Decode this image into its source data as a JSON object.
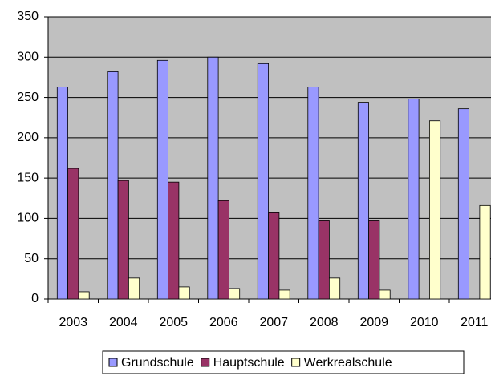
{
  "chart_data": {
    "type": "bar",
    "categories": [
      "2003",
      "2004",
      "2005",
      "2006",
      "2007",
      "2008",
      "2009",
      "2010",
      "2011"
    ],
    "series": [
      {
        "name": "Grundschule",
        "color": "#9999ff",
        "values": [
          263,
          282,
          296,
          300,
          292,
          263,
          244,
          248,
          236
        ]
      },
      {
        "name": "Hauptschule",
        "color": "#993366",
        "values": [
          162,
          147,
          145,
          122,
          107,
          97,
          97,
          null,
          null
        ]
      },
      {
        "name": "Werkrealschule",
        "color": "#ffffcc",
        "values": [
          9,
          26,
          15,
          13,
          11,
          26,
          11,
          221,
          116
        ]
      }
    ],
    "ylim": [
      0,
      350
    ],
    "yticks": [
      0,
      50,
      100,
      150,
      200,
      250,
      300,
      350
    ],
    "grid": true,
    "legend": "bottom"
  }
}
